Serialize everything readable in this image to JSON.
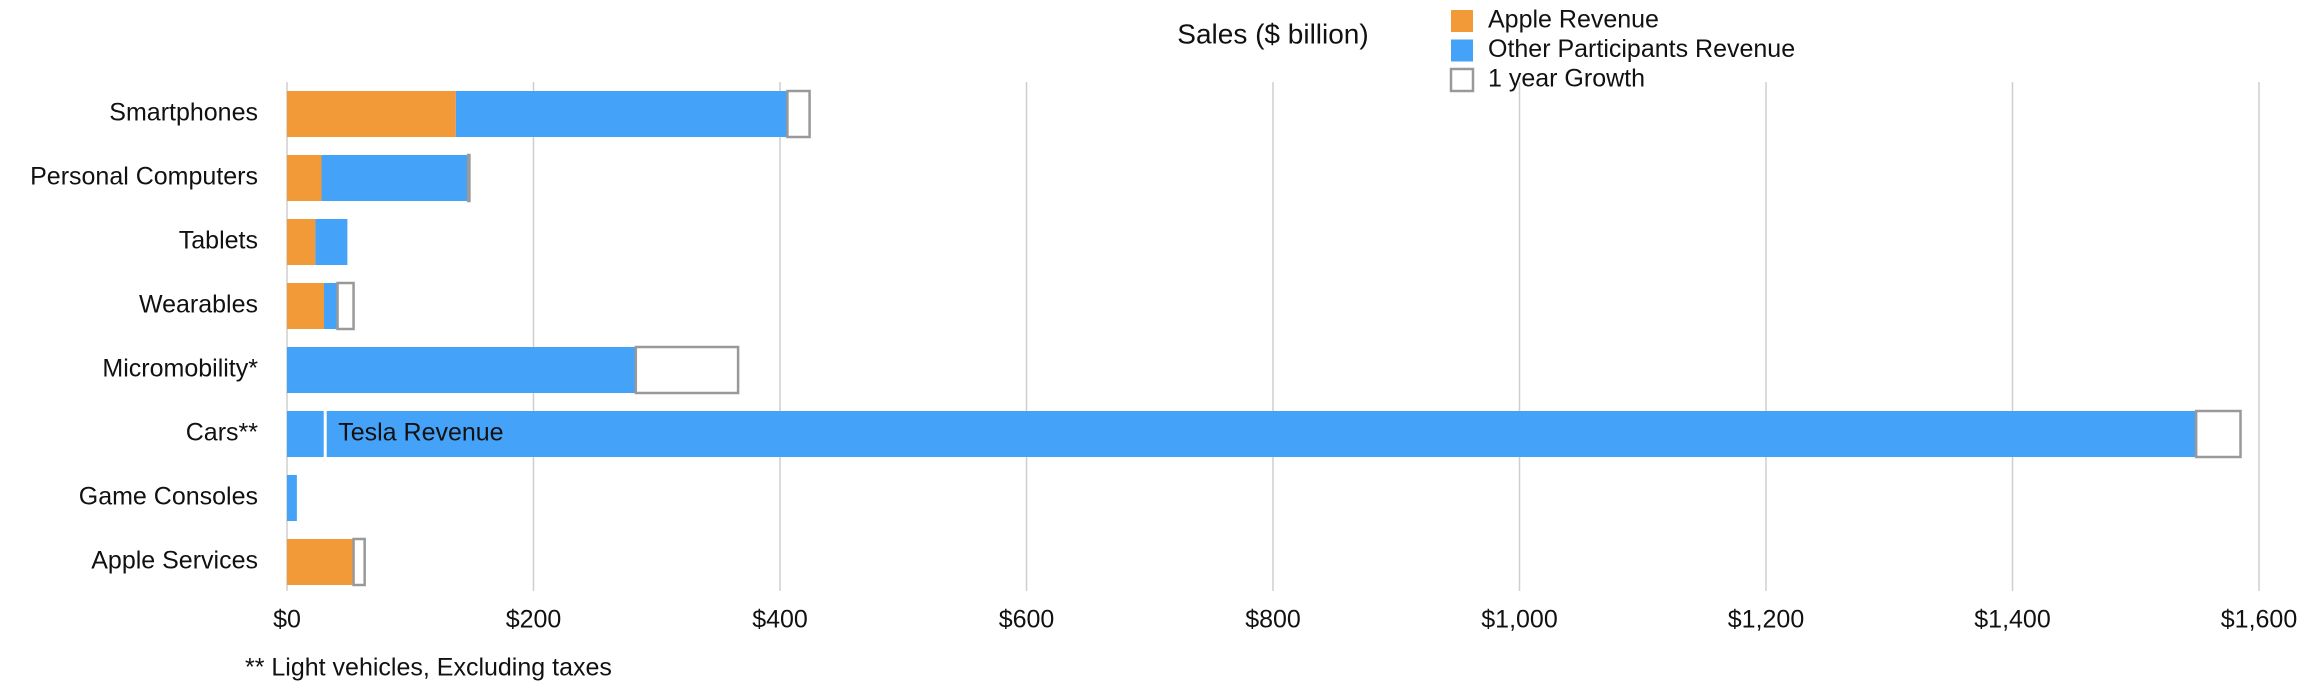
{
  "chart_data": {
    "type": "stacked-barh",
    "title": "Sales ($ billion)",
    "categories": [
      "Smartphones",
      "Personal Computers",
      "Tablets",
      "Wearables",
      "Micromobility*",
      "Cars**",
      "Game Consoles",
      "Apple Services"
    ],
    "series": [
      {
        "name": "Apple Revenue",
        "color": "#f39a38",
        "values": [
          137,
          28,
          23,
          30,
          0,
          0,
          0,
          54
        ]
      },
      {
        "name": "Other Participants Revenue",
        "color": "#44a2f8",
        "values": [
          269,
          119,
          26,
          11,
          283,
          1549,
          8,
          0
        ]
      },
      {
        "name": "1 year Growth",
        "color": "#ffffff",
        "values": [
          18,
          1,
          0,
          13,
          83,
          36,
          0,
          9
        ]
      }
    ],
    "xlim": [
      0,
      1600
    ],
    "xticks": [
      {
        "value": 0,
        "label": "$0"
      },
      {
        "value": 200,
        "label": "$200"
      },
      {
        "value": 400,
        "label": "$400"
      },
      {
        "value": 600,
        "label": "$600"
      },
      {
        "value": 800,
        "label": "$800"
      },
      {
        "value": 1000,
        "label": "$1,000"
      },
      {
        "value": 1200,
        "label": "$1,200"
      },
      {
        "value": 1400,
        "label": "$1,400"
      },
      {
        "value": 1600,
        "label": "$1,600"
      }
    ],
    "grid": true,
    "annotation": {
      "text": "Tesla Revenue",
      "category": 5,
      "value": 31
    },
    "footnote": "** Light vehicles, Excluding taxes"
  }
}
